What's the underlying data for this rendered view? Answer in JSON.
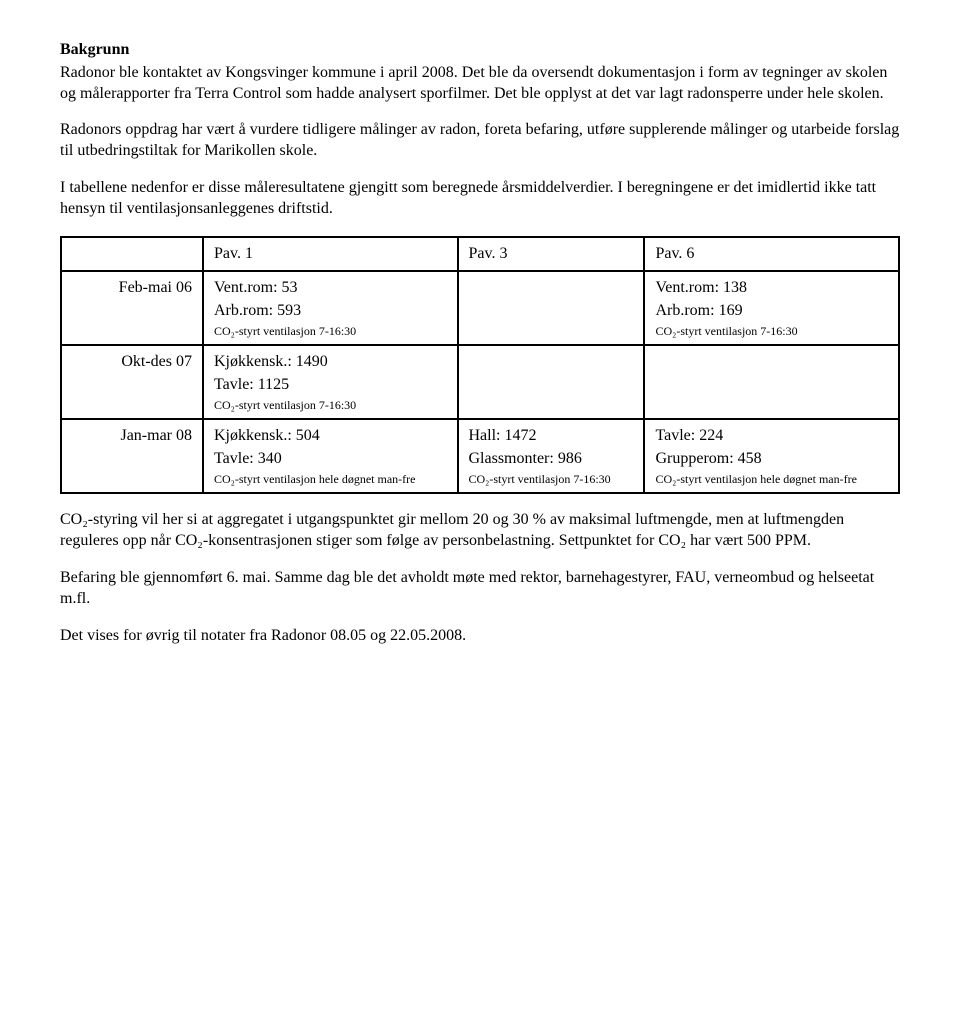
{
  "heading": "Bakgrunn",
  "para1": "Radonor ble kontaktet av Kongsvinger kommune i april 2008. Det ble da oversendt dokumentasjon i form av tegninger av skolen og målerapporter fra Terra Control som hadde analysert sporfilmer. Det ble opplyst at det var lagt radonsperre under hele skolen.",
  "para2": "Radonors oppdrag har vært å vurdere tidligere målinger av radon, foreta befaring, utføre supplerende målinger og utarbeide forslag til utbedringstiltak for Marikollen skole.",
  "para3": "I tabellene nedenfor er disse måleresultatene gjengitt som beregnede årsmiddelverdier. I beregningene er det imidlertid ikke tatt hensyn til ventilasjonsanleggenes driftstid.",
  "table": {
    "columns": [
      "Pav. 1",
      "Pav. 3",
      "Pav. 6"
    ],
    "rows": [
      {
        "label": "Feb-mai 06",
        "cells": [
          {
            "lines": [
              "Vent.rom: 53",
              "Arb.rom: 593"
            ],
            "sub": "CO₂-styrt ventilasjon 7-16:30"
          },
          null,
          {
            "lines": [
              "Vent.rom: 138",
              "Arb.rom: 169"
            ],
            "sub": "CO₂-styrt ventilasjon 7-16:30"
          }
        ]
      },
      {
        "label": "Okt-des 07",
        "cells": [
          {
            "lines": [
              "Kjøkkensk.: 1490",
              "Tavle: 1125"
            ],
            "sub": "CO₂-styrt ventilasjon 7-16:30"
          },
          null,
          null
        ]
      },
      {
        "label": "Jan-mar 08",
        "cells": [
          {
            "lines": [
              "Kjøkkensk.: 504",
              "Tavle: 340"
            ],
            "sub": "CO₂-styrt ventilasjon hele døgnet man-fre"
          },
          {
            "lines": [
              "Hall: 1472",
              "Glassmonter: 986"
            ],
            "sub": "CO₂-styrt ventilasjon 7-16:30"
          },
          {
            "lines": [
              "Tavle: 224",
              "Grupperom: 458"
            ],
            "sub": "CO₂-styrt ventilasjon hele døgnet man-fre"
          }
        ]
      }
    ]
  },
  "para4": "CO₂-styring vil her si at aggregatet i utgangspunktet gir mellom 20 og 30 % av maksimal luftmengde, men at luftmengden reguleres opp når CO₂-konsentrasjonen stiger som følge av personbelastning. Settpunktet for CO₂ har vært 500 PPM.",
  "para5": "Befaring ble gjennomført 6. mai. Samme dag ble det avholdt møte med rektor, barnehagestyrer, FAU, verneombud og helseetat m.fl.",
  "para6": "Det vises for øvrig til notater fra Radonor 08.05 og 22.05.2008."
}
